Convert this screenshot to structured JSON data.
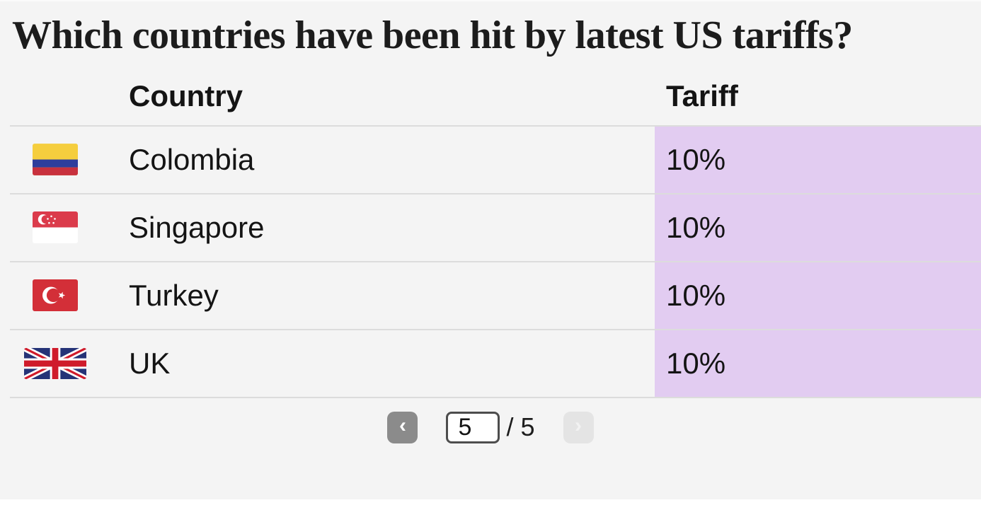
{
  "title": "Which countries have been hit by latest US tariffs?",
  "table": {
    "column_headers": {
      "country": "Country",
      "tariff": "Tariff"
    },
    "rows": [
      {
        "flag": "colombia",
        "country": "Colombia",
        "tariff": "10%"
      },
      {
        "flag": "singapore",
        "country": "Singapore",
        "tariff": "10%"
      },
      {
        "flag": "turkey",
        "country": "Turkey",
        "tariff": "10%"
      },
      {
        "flag": "uk",
        "country": "UK",
        "tariff": "10%"
      }
    ]
  },
  "pagination": {
    "current_page": "5",
    "separator": "/",
    "total_pages": "5",
    "prev_icon": "‹",
    "next_icon": "›"
  },
  "colors": {
    "background": "#f4f4f4",
    "tariff_cell_bg": "#e2ccf1",
    "divider": "#dcdcdc",
    "text": "#141414",
    "prev_button_bg": "#8b8b8b",
    "next_button_bg": "#e4e4e4"
  },
  "chart_data": {
    "type": "table",
    "title": "Which countries have been hit by latest US tariffs?",
    "columns": [
      "Country",
      "Tariff"
    ],
    "rows": [
      [
        "Colombia",
        "10%"
      ],
      [
        "Singapore",
        "10%"
      ],
      [
        "Turkey",
        "10%"
      ],
      [
        "UK",
        "10%"
      ]
    ],
    "current_page": 5,
    "total_pages": 5,
    "notes": "tariff column highlighted purple; flag icon shown beside each country"
  }
}
